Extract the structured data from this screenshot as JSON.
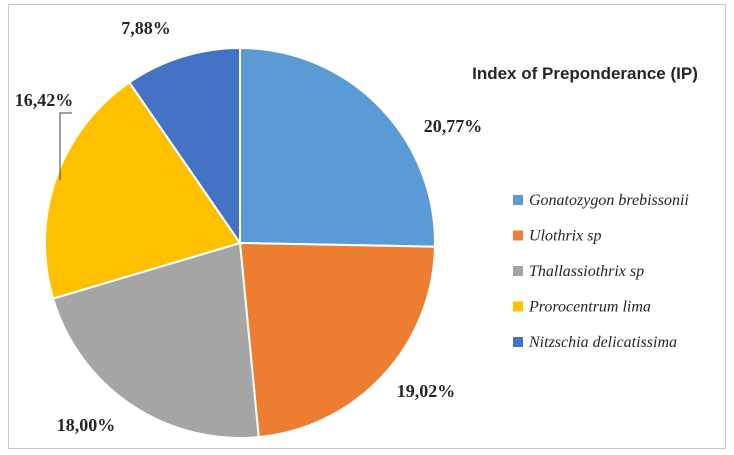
{
  "chart_data": {
    "type": "pie",
    "title": "Index of Preponderance (IP)",
    "slices": [
      {
        "label": "Gonatozygon brebissonii",
        "value": 20.77,
        "display": "20,77%",
        "color": "#5B9BD5"
      },
      {
        "label": "Ulothrix sp",
        "value": 19.02,
        "display": "19,02%",
        "color": "#ED7D31"
      },
      {
        "label": "Thallassiothrix sp",
        "value": 18.0,
        "display": "18,00%",
        "color": "#A5A5A5"
      },
      {
        "label": "Prorocentrum lima",
        "value": 16.42,
        "display": "16,42%",
        "color": "#FFC000"
      },
      {
        "label": "Nitzschia delicatissima",
        "value": 7.88,
        "display": "7,88%",
        "color": "#4472C4"
      }
    ],
    "legend_position": "right"
  }
}
